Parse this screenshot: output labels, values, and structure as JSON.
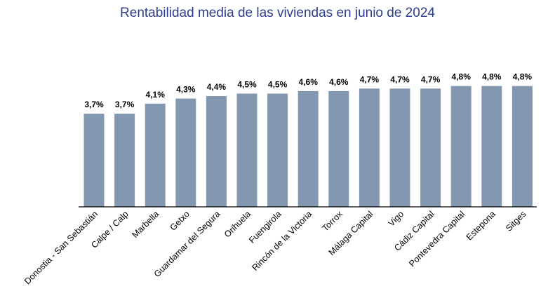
{
  "chart_data": {
    "type": "bar",
    "title": "Rentabilidad media de las viviendas en junio de 2024",
    "xlabel": "",
    "ylabel": "",
    "categories": [
      "Donostia - San Sebastián",
      "Calpe / Calp",
      "Marbella",
      "Getxo",
      "Guardamar del Segura",
      "Orihuela",
      "Fuengirola",
      "Rincón de la Victoria",
      "Torrox",
      "Málaga Capital",
      "Vigo",
      "Cádiz Capital",
      "Pontevedra Capital",
      "Estepona",
      "Sitges"
    ],
    "values": [
      3.7,
      3.7,
      4.1,
      4.3,
      4.4,
      4.5,
      4.5,
      4.6,
      4.6,
      4.7,
      4.7,
      4.7,
      4.8,
      4.8,
      4.8
    ],
    "value_labels": [
      "3,7%",
      "3,7%",
      "4,1%",
      "4,3%",
      "4,4%",
      "4,5%",
      "4,5%",
      "4,6%",
      "4,6%",
      "4,7%",
      "4,7%",
      "4,7%",
      "4,8%",
      "4,8%",
      "4,8%"
    ],
    "ylim": [
      0,
      4.8
    ],
    "grid": false,
    "legend": "none",
    "colors": {
      "bar": "#8497b0",
      "title": "#2e3d8f",
      "axis": "#000000"
    }
  }
}
